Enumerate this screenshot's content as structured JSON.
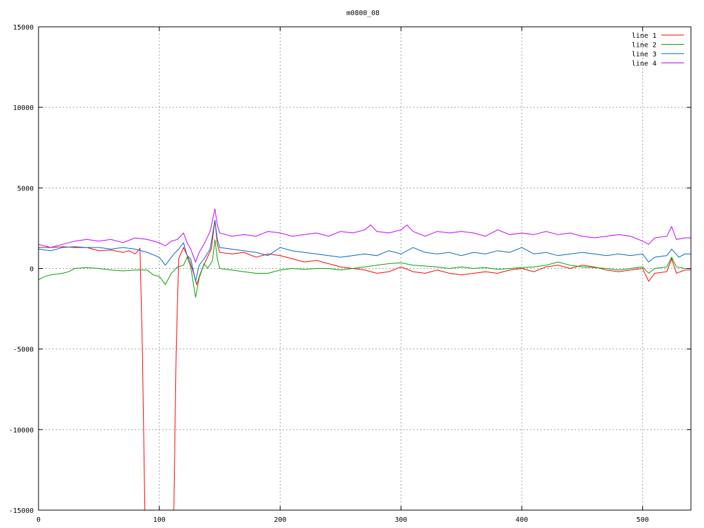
{
  "chart_data": {
    "type": "line",
    "title": "m0800_08",
    "xlabel": "",
    "ylabel": "",
    "xlim": [
      0,
      540
    ],
    "ylim": [
      -15000,
      15000
    ],
    "x_ticks": [
      0,
      100,
      200,
      300,
      400,
      500
    ],
    "y_ticks": [
      -15000,
      -10000,
      -5000,
      0,
      5000,
      10000,
      15000
    ],
    "grid": true,
    "legend_position": "top-right",
    "series": [
      {
        "name": "line 1",
        "color": "#ff0000",
        "points": [
          [
            0,
            1300
          ],
          [
            10,
            1300
          ],
          [
            20,
            1350
          ],
          [
            30,
            1300
          ],
          [
            40,
            1300
          ],
          [
            50,
            1100
          ],
          [
            60,
            1150
          ],
          [
            70,
            1000
          ],
          [
            75,
            1100
          ],
          [
            80,
            900
          ],
          [
            84,
            1250
          ],
          [
            86,
            -5000
          ],
          [
            88,
            -15000
          ],
          [
            112,
            -15000
          ],
          [
            114,
            -5000
          ],
          [
            116,
            600
          ],
          [
            120,
            1300
          ],
          [
            125,
            500
          ],
          [
            128,
            -200
          ],
          [
            131,
            -1000
          ],
          [
            134,
            -300
          ],
          [
            138,
            400
          ],
          [
            143,
            1200
          ],
          [
            146,
            3000
          ],
          [
            148,
            1500
          ],
          [
            150,
            1000
          ],
          [
            160,
            900
          ],
          [
            170,
            1000
          ],
          [
            180,
            700
          ],
          [
            190,
            900
          ],
          [
            200,
            800
          ],
          [
            210,
            600
          ],
          [
            220,
            400
          ],
          [
            230,
            500
          ],
          [
            240,
            300
          ],
          [
            250,
            100
          ],
          [
            260,
            0
          ],
          [
            270,
            -100
          ],
          [
            280,
            -300
          ],
          [
            290,
            -200
          ],
          [
            300,
            100
          ],
          [
            310,
            -200
          ],
          [
            320,
            -300
          ],
          [
            330,
            -100
          ],
          [
            340,
            -300
          ],
          [
            350,
            -400
          ],
          [
            360,
            -300
          ],
          [
            370,
            -200
          ],
          [
            380,
            -300
          ],
          [
            390,
            -100
          ],
          [
            400,
            0
          ],
          [
            410,
            -200
          ],
          [
            420,
            100
          ],
          [
            430,
            200
          ],
          [
            440,
            0
          ],
          [
            450,
            200
          ],
          [
            460,
            100
          ],
          [
            470,
            -100
          ],
          [
            480,
            -200
          ],
          [
            490,
            -100
          ],
          [
            500,
            0
          ],
          [
            505,
            -800
          ],
          [
            510,
            -300
          ],
          [
            520,
            -200
          ],
          [
            524,
            600
          ],
          [
            528,
            -300
          ],
          [
            535,
            -100
          ],
          [
            540,
            -100
          ]
        ]
      },
      {
        "name": "line 2",
        "color": "#00a000",
        "points": [
          [
            0,
            -700
          ],
          [
            5,
            -500
          ],
          [
            10,
            -400
          ],
          [
            15,
            -350
          ],
          [
            20,
            -300
          ],
          [
            25,
            -200
          ],
          [
            30,
            0
          ],
          [
            40,
            50
          ],
          [
            50,
            0
          ],
          [
            60,
            -100
          ],
          [
            70,
            -150
          ],
          [
            80,
            -100
          ],
          [
            90,
            -100
          ],
          [
            95,
            -400
          ],
          [
            100,
            -500
          ],
          [
            105,
            -1000
          ],
          [
            110,
            -300
          ],
          [
            115,
            100
          ],
          [
            120,
            200
          ],
          [
            123,
            700
          ],
          [
            126,
            100
          ],
          [
            130,
            -1800
          ],
          [
            133,
            -600
          ],
          [
            137,
            300
          ],
          [
            140,
            0
          ],
          [
            144,
            500
          ],
          [
            146,
            1800
          ],
          [
            148,
            600
          ],
          [
            150,
            0
          ],
          [
            160,
            -100
          ],
          [
            170,
            -200
          ],
          [
            180,
            -300
          ],
          [
            190,
            -300
          ],
          [
            200,
            -100
          ],
          [
            210,
            0
          ],
          [
            220,
            -50
          ],
          [
            230,
            0
          ],
          [
            240,
            0
          ],
          [
            250,
            -100
          ],
          [
            260,
            0
          ],
          [
            270,
            100
          ],
          [
            280,
            200
          ],
          [
            290,
            300
          ],
          [
            300,
            350
          ],
          [
            310,
            200
          ],
          [
            320,
            150
          ],
          [
            330,
            100
          ],
          [
            340,
            0
          ],
          [
            350,
            100
          ],
          [
            360,
            0
          ],
          [
            370,
            50
          ],
          [
            380,
            -50
          ],
          [
            390,
            0
          ],
          [
            400,
            50
          ],
          [
            410,
            100
          ],
          [
            420,
            200
          ],
          [
            430,
            400
          ],
          [
            440,
            200
          ],
          [
            450,
            100
          ],
          [
            460,
            50
          ],
          [
            470,
            0
          ],
          [
            480,
            -100
          ],
          [
            490,
            0
          ],
          [
            500,
            100
          ],
          [
            505,
            -300
          ],
          [
            510,
            0
          ],
          [
            520,
            100
          ],
          [
            524,
            700
          ],
          [
            528,
            100
          ],
          [
            535,
            0
          ],
          [
            540,
            0
          ]
        ]
      },
      {
        "name": "line 3",
        "color": "#0066cc",
        "points": [
          [
            0,
            1200
          ],
          [
            10,
            1100
          ],
          [
            20,
            1300
          ],
          [
            30,
            1350
          ],
          [
            40,
            1300
          ],
          [
            50,
            1300
          ],
          [
            60,
            1200
          ],
          [
            70,
            1300
          ],
          [
            80,
            1200
          ],
          [
            90,
            1000
          ],
          [
            100,
            700
          ],
          [
            105,
            200
          ],
          [
            108,
            500
          ],
          [
            112,
            900
          ],
          [
            116,
            1200
          ],
          [
            120,
            1600
          ],
          [
            123,
            800
          ],
          [
            126,
            600
          ],
          [
            130,
            -800
          ],
          [
            133,
            200
          ],
          [
            137,
            600
          ],
          [
            142,
            1200
          ],
          [
            146,
            3000
          ],
          [
            148,
            1800
          ],
          [
            150,
            1300
          ],
          [
            160,
            1200
          ],
          [
            170,
            1100
          ],
          [
            180,
            1000
          ],
          [
            190,
            800
          ],
          [
            200,
            1300
          ],
          [
            210,
            1100
          ],
          [
            220,
            1000
          ],
          [
            230,
            900
          ],
          [
            240,
            800
          ],
          [
            250,
            700
          ],
          [
            260,
            800
          ],
          [
            270,
            900
          ],
          [
            280,
            800
          ],
          [
            290,
            1100
          ],
          [
            300,
            900
          ],
          [
            310,
            1300
          ],
          [
            320,
            1000
          ],
          [
            330,
            900
          ],
          [
            340,
            1000
          ],
          [
            350,
            800
          ],
          [
            360,
            1000
          ],
          [
            370,
            900
          ],
          [
            380,
            1100
          ],
          [
            390,
            1000
          ],
          [
            400,
            1300
          ],
          [
            410,
            900
          ],
          [
            420,
            1000
          ],
          [
            430,
            800
          ],
          [
            440,
            900
          ],
          [
            450,
            1000
          ],
          [
            460,
            900
          ],
          [
            470,
            800
          ],
          [
            480,
            900
          ],
          [
            490,
            800
          ],
          [
            500,
            900
          ],
          [
            505,
            400
          ],
          [
            510,
            700
          ],
          [
            520,
            800
          ],
          [
            524,
            1200
          ],
          [
            530,
            700
          ],
          [
            535,
            900
          ],
          [
            540,
            900
          ]
        ]
      },
      {
        "name": "line 4",
        "color": "#c000ff",
        "points": [
          [
            0,
            1500
          ],
          [
            10,
            1300
          ],
          [
            20,
            1500
          ],
          [
            30,
            1700
          ],
          [
            40,
            1800
          ],
          [
            50,
            1700
          ],
          [
            60,
            1800
          ],
          [
            70,
            1600
          ],
          [
            80,
            1900
          ],
          [
            90,
            1800
          ],
          [
            100,
            1600
          ],
          [
            105,
            1400
          ],
          [
            110,
            1700
          ],
          [
            115,
            1800
          ],
          [
            120,
            2200
          ],
          [
            123,
            1600
          ],
          [
            126,
            1200
          ],
          [
            130,
            400
          ],
          [
            133,
            1000
          ],
          [
            137,
            1500
          ],
          [
            142,
            2300
          ],
          [
            146,
            3700
          ],
          [
            148,
            2700
          ],
          [
            150,
            2200
          ],
          [
            160,
            2000
          ],
          [
            170,
            2100
          ],
          [
            180,
            2000
          ],
          [
            190,
            2300
          ],
          [
            200,
            2200
          ],
          [
            210,
            2000
          ],
          [
            220,
            2100
          ],
          [
            230,
            2200
          ],
          [
            240,
            2000
          ],
          [
            250,
            2300
          ],
          [
            260,
            2200
          ],
          [
            270,
            2400
          ],
          [
            275,
            2700
          ],
          [
            280,
            2300
          ],
          [
            290,
            2200
          ],
          [
            300,
            2400
          ],
          [
            305,
            2700
          ],
          [
            310,
            2300
          ],
          [
            320,
            2000
          ],
          [
            330,
            2300
          ],
          [
            340,
            2200
          ],
          [
            350,
            2300
          ],
          [
            360,
            2200
          ],
          [
            370,
            2000
          ],
          [
            380,
            2400
          ],
          [
            390,
            2100
          ],
          [
            400,
            2200
          ],
          [
            410,
            2100
          ],
          [
            420,
            2300
          ],
          [
            430,
            2100
          ],
          [
            440,
            2200
          ],
          [
            450,
            2000
          ],
          [
            460,
            1900
          ],
          [
            470,
            2000
          ],
          [
            480,
            2100
          ],
          [
            490,
            2000
          ],
          [
            500,
            1700
          ],
          [
            505,
            1500
          ],
          [
            510,
            1900
          ],
          [
            520,
            2000
          ],
          [
            524,
            2600
          ],
          [
            528,
            1800
          ],
          [
            535,
            1900
          ],
          [
            540,
            1900
          ]
        ]
      }
    ]
  }
}
